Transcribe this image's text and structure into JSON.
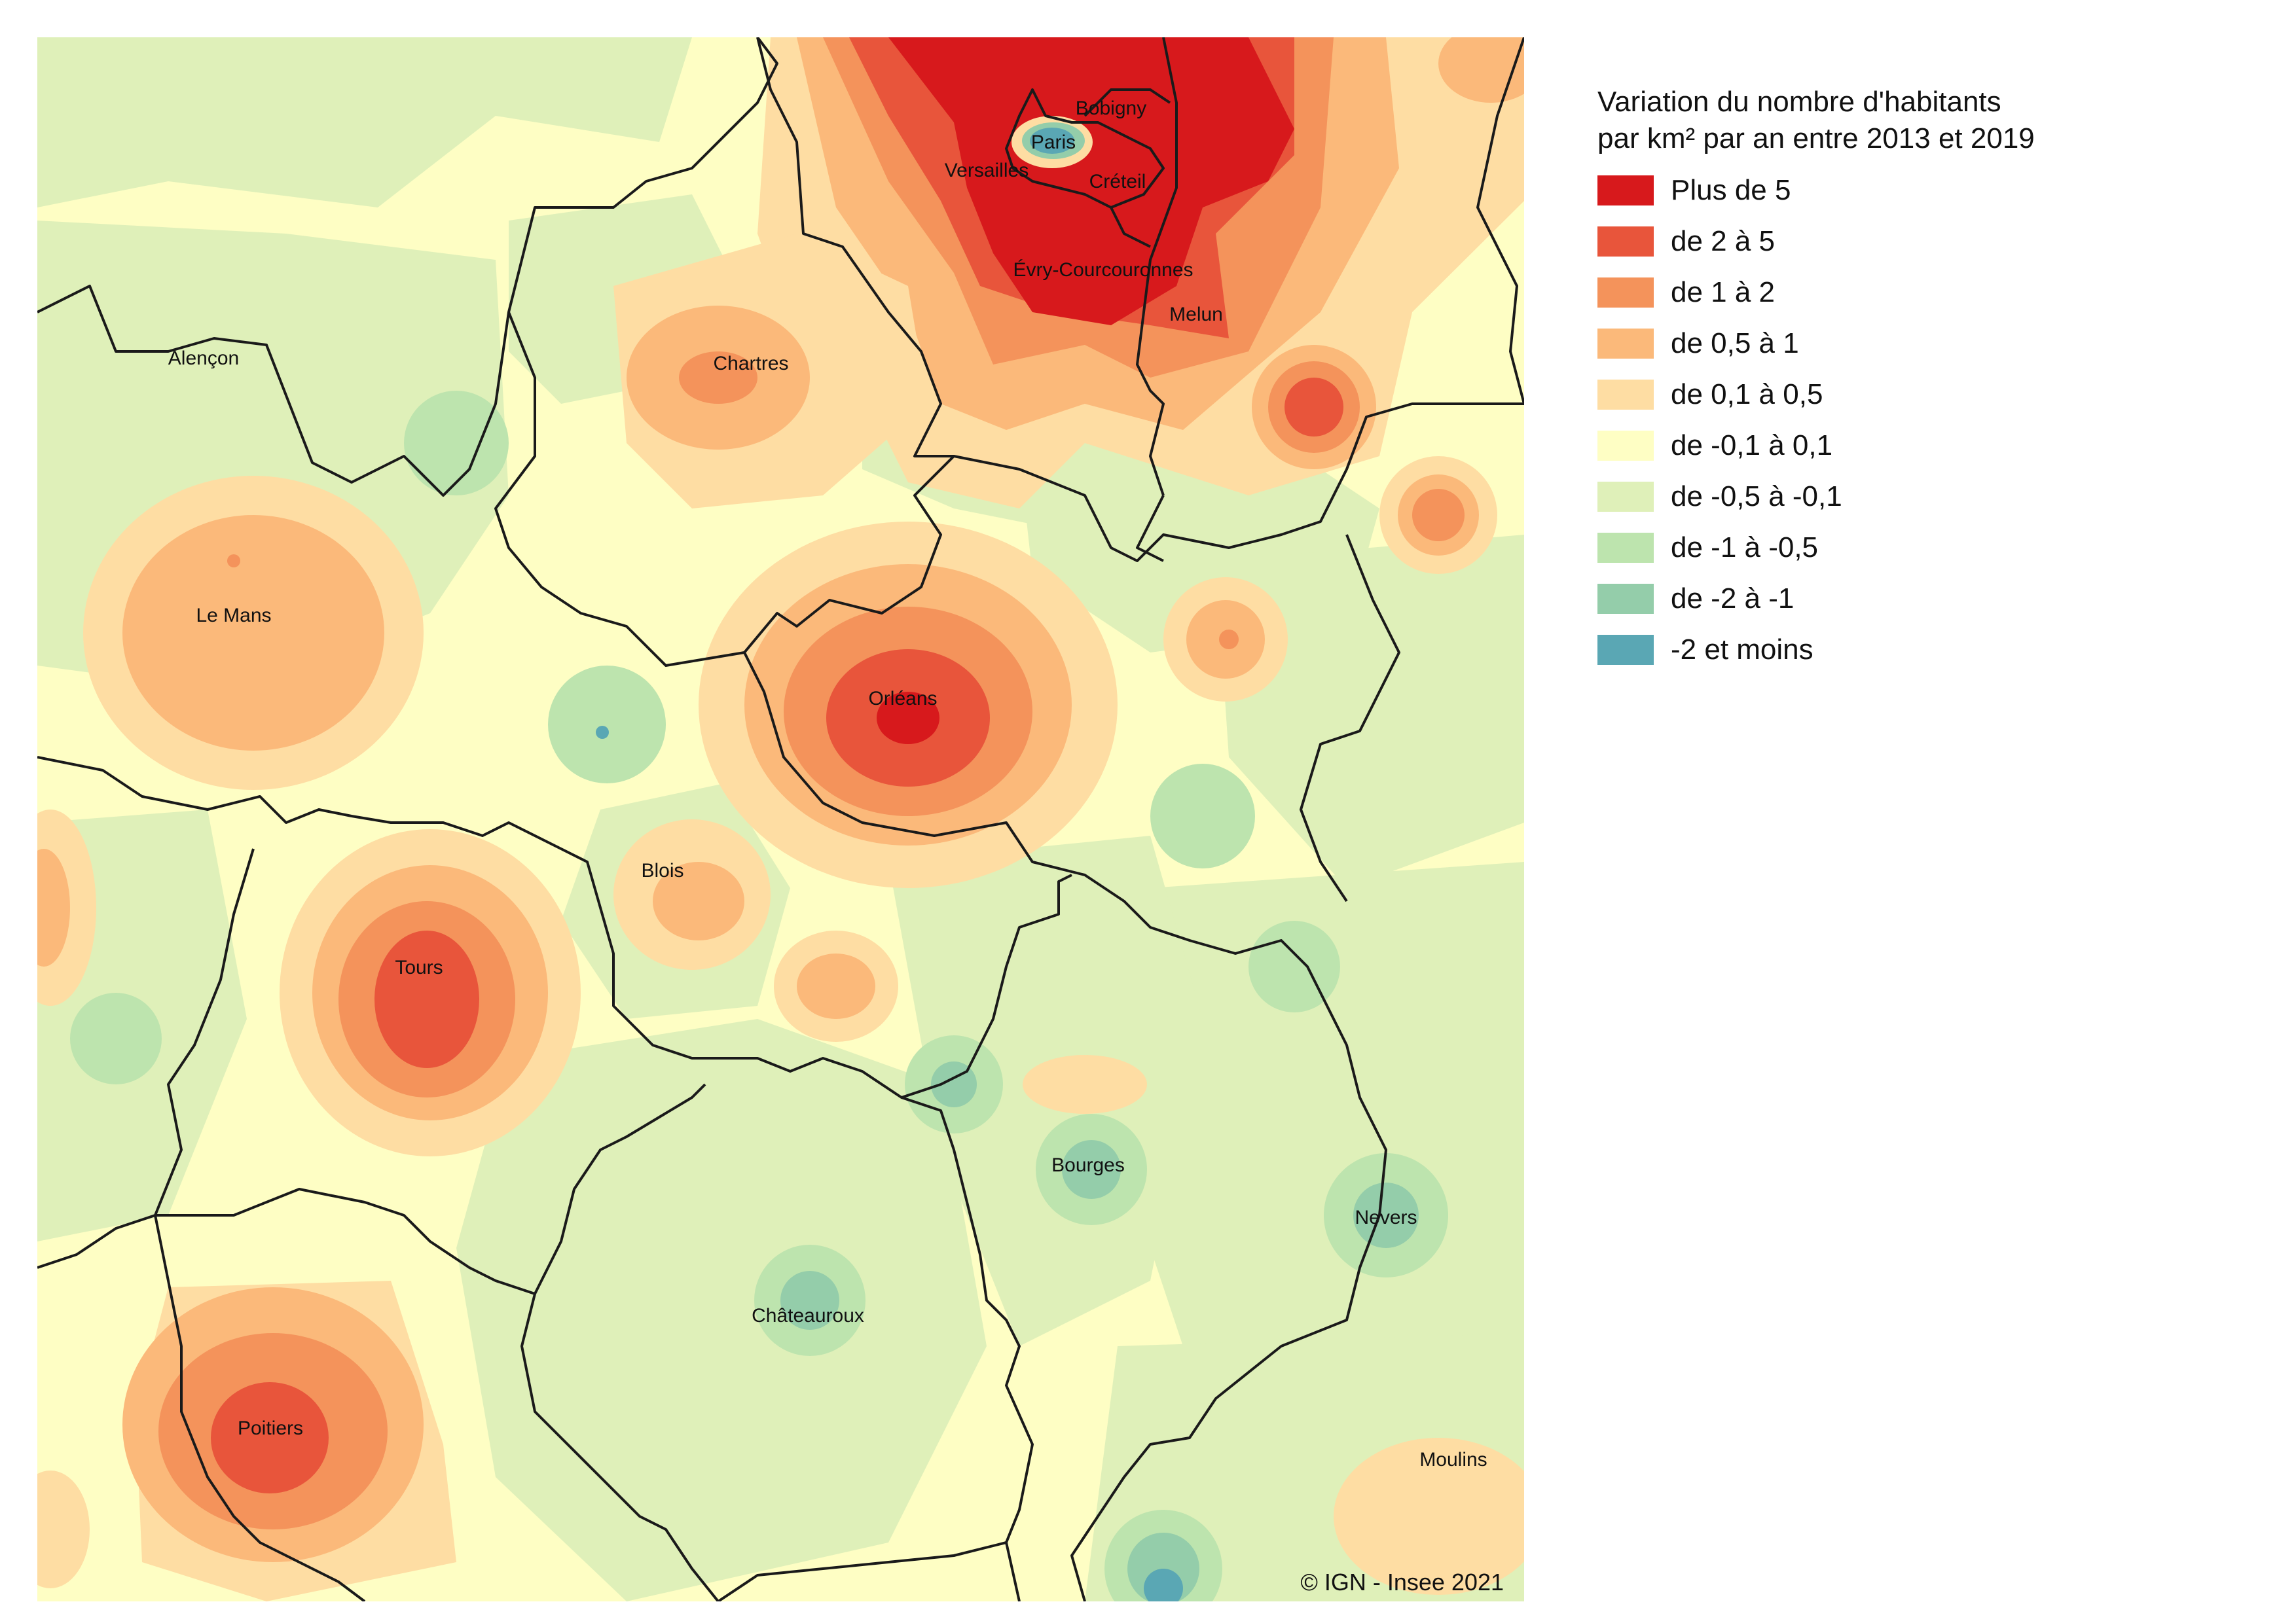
{
  "legend": {
    "title_line1": "Variation du nombre d'habitants",
    "title_line2": "par km² par an entre 2013 et 2019",
    "classes": [
      {
        "label": "Plus de 5",
        "color": "#d7191c"
      },
      {
        "label": "de 2 à 5",
        "color": "#e8553b"
      },
      {
        "label": "de 1 à 2",
        "color": "#f4935b"
      },
      {
        "label": "de 0,5 à 1",
        "color": "#fbb97a"
      },
      {
        "label": "de 0,1 à 0,5",
        "color": "#fedda3"
      },
      {
        "label": "de -0,1 à 0,1",
        "color": "#fefec4"
      },
      {
        "label": "de -0,5 à -0,1",
        "color": "#dff0b9"
      },
      {
        "label": "de -1 à -0,5",
        "color": "#bde4ae"
      },
      {
        "label": "de -2 à -1",
        "color": "#94cdaa"
      },
      {
        "label": "-2 et moins",
        "color": "#5aa7b4"
      }
    ]
  },
  "cities": {
    "paris": "Paris",
    "bobigny": "Bobigny",
    "versailles": "Versailles",
    "creteil": "Créteil",
    "evry": "Évry-Courcouronnes",
    "melun": "Melun",
    "alencon": "Alençon",
    "chartres": "Chartres",
    "le_mans": "Le Mans",
    "orleans": "Orléans",
    "blois": "Blois",
    "tours": "Tours",
    "bourges": "Bourges",
    "nevers": "Nevers",
    "chateauroux": "Châteauroux",
    "poitiers": "Poitiers",
    "moulins": "Moulins"
  },
  "credit": "© IGN - Insee 2021"
}
